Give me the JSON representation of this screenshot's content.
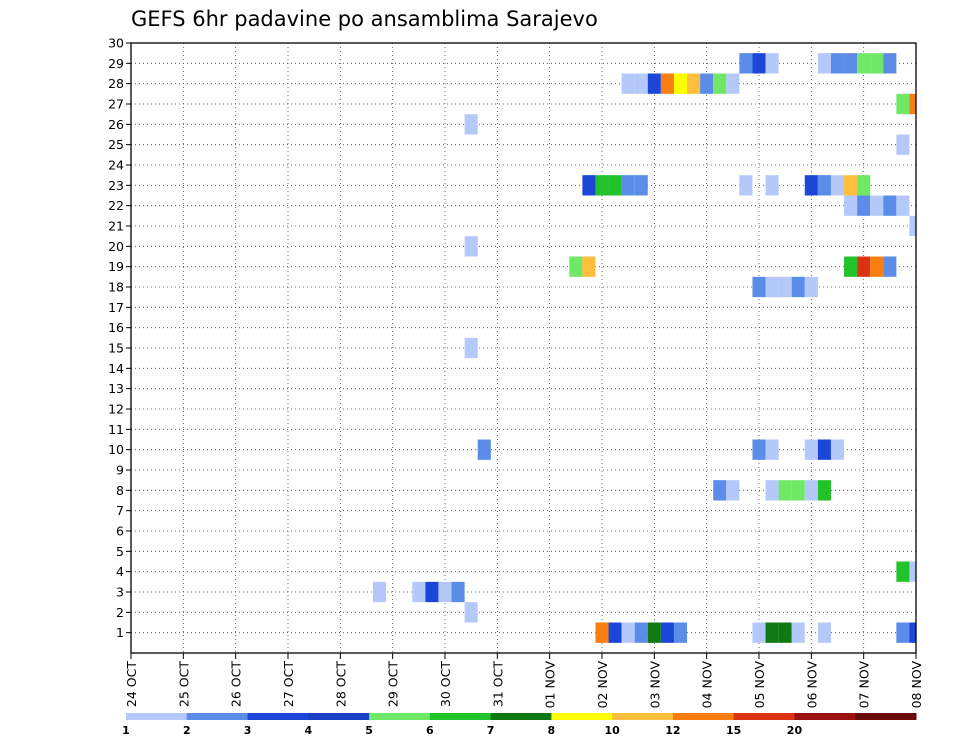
{
  "chart_data": {
    "type": "heatmap",
    "title": "GEFS 6hr padavine po ansamblima Sarajevo",
    "xlabel": "",
    "ylabel": "",
    "x_ticks": [
      "24 OCT",
      "25 OCT",
      "26 OCT",
      "27 OCT",
      "28 OCT",
      "29 OCT",
      "30 OCT",
      "31 OCT",
      "01 NOV",
      "02 NOV",
      "03 NOV",
      "04 NOV",
      "05 NOV",
      "06 NOV",
      "07 NOV",
      "08 NOV"
    ],
    "x_range_days": [
      0,
      15
    ],
    "y_ticks": [
      1,
      2,
      3,
      4,
      5,
      6,
      7,
      8,
      9,
      10,
      11,
      12,
      13,
      14,
      15,
      16,
      17,
      18,
      19,
      20,
      21,
      22,
      23,
      24,
      25,
      26,
      27,
      28,
      29,
      30
    ],
    "y_range": [
      0,
      30
    ],
    "grid": true,
    "colorbar": {
      "labels": [
        "1",
        "2",
        "3",
        "4",
        "5",
        "6",
        "7",
        "8",
        "10",
        "12",
        "15",
        "20"
      ],
      "colors": [
        "#b4c8fa",
        "#5a8ce8",
        "#1c46d8",
        "#1a3ec4",
        "#6ee865",
        "#22c22a",
        "#0f7a14",
        "#ffff00",
        "#ffbe3c",
        "#fa7d10",
        "#dc3214",
        "#9b1212",
        "#6a0a0a"
      ]
    },
    "cells_note": "each cell: [forecast day offset from 24 OCT 00Z, ensemble member, precipitation class 1-13]",
    "cells": [
      [
        11.75,
        29,
        2
      ],
      [
        12.0,
        29,
        3
      ],
      [
        12.25,
        29,
        1
      ],
      [
        13.25,
        29,
        1
      ],
      [
        13.5,
        29,
        2
      ],
      [
        13.75,
        29,
        2
      ],
      [
        14.0,
        29,
        5
      ],
      [
        14.25,
        29,
        5
      ],
      [
        14.5,
        29,
        2
      ],
      [
        9.5,
        28,
        1
      ],
      [
        9.75,
        28,
        1
      ],
      [
        10.0,
        28,
        3
      ],
      [
        10.25,
        28,
        10
      ],
      [
        10.5,
        28,
        8
      ],
      [
        10.75,
        28,
        9
      ],
      [
        11.0,
        28,
        2
      ],
      [
        11.25,
        28,
        5
      ],
      [
        11.5,
        28,
        1
      ],
      [
        14.75,
        27,
        5
      ],
      [
        15.0,
        27,
        10
      ],
      [
        6.5,
        26,
        1
      ],
      [
        14.75,
        25,
        1
      ],
      [
        8.75,
        23,
        3
      ],
      [
        9.0,
        23,
        6
      ],
      [
        9.25,
        23,
        6
      ],
      [
        9.5,
        23,
        2
      ],
      [
        9.75,
        23,
        2
      ],
      [
        11.75,
        23,
        1
      ],
      [
        12.25,
        23,
        1
      ],
      [
        13.0,
        23,
        3
      ],
      [
        13.25,
        23,
        2
      ],
      [
        13.5,
        23,
        1
      ],
      [
        13.75,
        23,
        9
      ],
      [
        14.0,
        23,
        5
      ],
      [
        13.75,
        22,
        1
      ],
      [
        14.0,
        22,
        2
      ],
      [
        14.25,
        22,
        1
      ],
      [
        14.5,
        22,
        2
      ],
      [
        14.75,
        22,
        1
      ],
      [
        15.0,
        21,
        1
      ],
      [
        6.5,
        20,
        1
      ],
      [
        8.5,
        19,
        5
      ],
      [
        8.75,
        19,
        9
      ],
      [
        13.75,
        19,
        6
      ],
      [
        14.0,
        19,
        11
      ],
      [
        14.25,
        19,
        10
      ],
      [
        14.5,
        19,
        2
      ],
      [
        12.0,
        18,
        2
      ],
      [
        12.25,
        18,
        1
      ],
      [
        12.5,
        18,
        1
      ],
      [
        12.75,
        18,
        2
      ],
      [
        13.0,
        18,
        1
      ],
      [
        6.5,
        15,
        1
      ],
      [
        6.75,
        10,
        2
      ],
      [
        12.0,
        10,
        2
      ],
      [
        12.25,
        10,
        1
      ],
      [
        13.0,
        10,
        1
      ],
      [
        13.25,
        10,
        3
      ],
      [
        13.5,
        10,
        1
      ],
      [
        11.25,
        8,
        2
      ],
      [
        11.5,
        8,
        1
      ],
      [
        12.25,
        8,
        1
      ],
      [
        12.5,
        8,
        5
      ],
      [
        12.75,
        8,
        5
      ],
      [
        13.0,
        8,
        1
      ],
      [
        13.25,
        8,
        6
      ],
      [
        14.75,
        4,
        6
      ],
      [
        15.0,
        4,
        1
      ],
      [
        4.75,
        3,
        1
      ],
      [
        5.5,
        3,
        1
      ],
      [
        5.75,
        3,
        3
      ],
      [
        6.0,
        3,
        1
      ],
      [
        6.25,
        3,
        2
      ],
      [
        6.5,
        2,
        1
      ],
      [
        9.0,
        1,
        10
      ],
      [
        9.25,
        1,
        3
      ],
      [
        9.5,
        1,
        1
      ],
      [
        9.75,
        1,
        2
      ],
      [
        10.0,
        1,
        7
      ],
      [
        10.25,
        1,
        3
      ],
      [
        10.5,
        1,
        2
      ],
      [
        12.0,
        1,
        1
      ],
      [
        12.25,
        1,
        7
      ],
      [
        12.5,
        1,
        7
      ],
      [
        12.75,
        1,
        1
      ],
      [
        13.25,
        1,
        1
      ],
      [
        14.75,
        1,
        2
      ],
      [
        15.0,
        1,
        3
      ]
    ]
  }
}
